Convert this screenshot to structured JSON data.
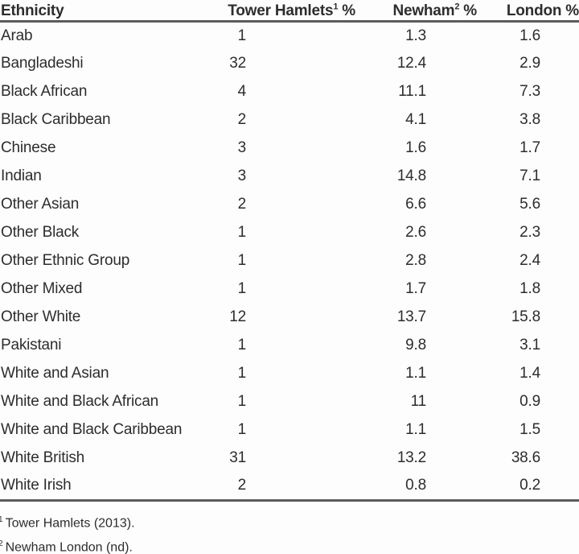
{
  "header": {
    "ethnicity": "Ethnicity",
    "tower_hamlets": {
      "label": "Tower Hamlets",
      "sup": "1",
      "pct": "%"
    },
    "newham": {
      "label": "Newham",
      "sup": "2",
      "pct": "%"
    },
    "london": {
      "label": "London",
      "pct": "%"
    }
  },
  "chart_data": {
    "type": "table",
    "columns": [
      "Ethnicity",
      "Tower Hamlets %",
      "Newham %",
      "London %"
    ],
    "rows": [
      [
        "Arab",
        "1",
        "1.3",
        "1.6"
      ],
      [
        "Bangladeshi",
        "32",
        "12.4",
        "2.9"
      ],
      [
        "Black African",
        "4",
        "11.1",
        "7.3"
      ],
      [
        "Black Caribbean",
        "2",
        "4.1",
        "3.8"
      ],
      [
        "Chinese",
        "3",
        "1.6",
        "1.7"
      ],
      [
        "Indian",
        "3",
        "14.8",
        "7.1"
      ],
      [
        "Other Asian",
        "2",
        "6.6",
        "5.6"
      ],
      [
        "Other Black",
        "1",
        "2.6",
        "2.3"
      ],
      [
        "Other Ethnic Group",
        "1",
        "2.8",
        "2.4"
      ],
      [
        "Other Mixed",
        "1",
        "1.7",
        "1.8"
      ],
      [
        "Other White",
        "12",
        "13.7",
        "15.8"
      ],
      [
        "Pakistani",
        "1",
        "9.8",
        "3.1"
      ],
      [
        "White and Asian",
        "1",
        "1.1",
        "1.4"
      ],
      [
        "White and Black African",
        "1",
        "11",
        "0.9"
      ],
      [
        "White and Black Caribbean",
        "1",
        "1.1",
        "1.5"
      ],
      [
        "White British",
        "31",
        "13.2",
        "38.6"
      ],
      [
        "White Irish",
        "2",
        "0.8",
        "0.2"
      ]
    ],
    "layout": {
      "grid": "horizontal rules under header and below last row only",
      "value_alignment": "right"
    }
  },
  "footnotes": [
    {
      "sup": "1",
      "text": "Tower Hamlets (2013)."
    },
    {
      "sup": "2",
      "text": "Newham London (nd)."
    }
  ],
  "colors": {
    "text": "#2d2d2d",
    "rule": "#5c5c5c",
    "background": "#fdfdfd"
  }
}
